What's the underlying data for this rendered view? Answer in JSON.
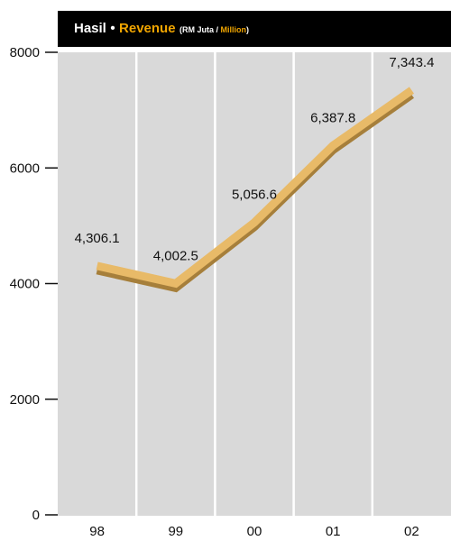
{
  "header": {
    "title_local": "Hasil",
    "bullet": "•",
    "title_en": "Revenue",
    "unit_open": "(RM Juta / ",
    "unit_en": "Million",
    "unit_close": ")"
  },
  "colors": {
    "header_bg": "#000000",
    "header_text": "#ffffff",
    "accent": "#f0a500",
    "plot_bg": "#d9d9d9",
    "gridline": "#ffffff",
    "line_top": "#e8ba68",
    "line_shadow": "#a67f3b"
  },
  "chart_data": {
    "type": "line",
    "categories": [
      "98",
      "99",
      "00",
      "01",
      "02"
    ],
    "series": [
      {
        "values": [
          4306.1,
          4002.5,
          5056.6,
          6387.8,
          7343.4
        ]
      }
    ],
    "data_labels": [
      "4,306.1",
      "4,002.5",
      "5,056.6",
      "6,387.8",
      "7,343.4"
    ],
    "y_ticks": [
      "0",
      "2000",
      "4000",
      "6000",
      "8000"
    ],
    "ylim": [
      0,
      8000
    ],
    "title": "Hasil • Revenue (RM Juta / Million)",
    "xlabel": "",
    "ylabel": "",
    "grid": "vertical"
  }
}
